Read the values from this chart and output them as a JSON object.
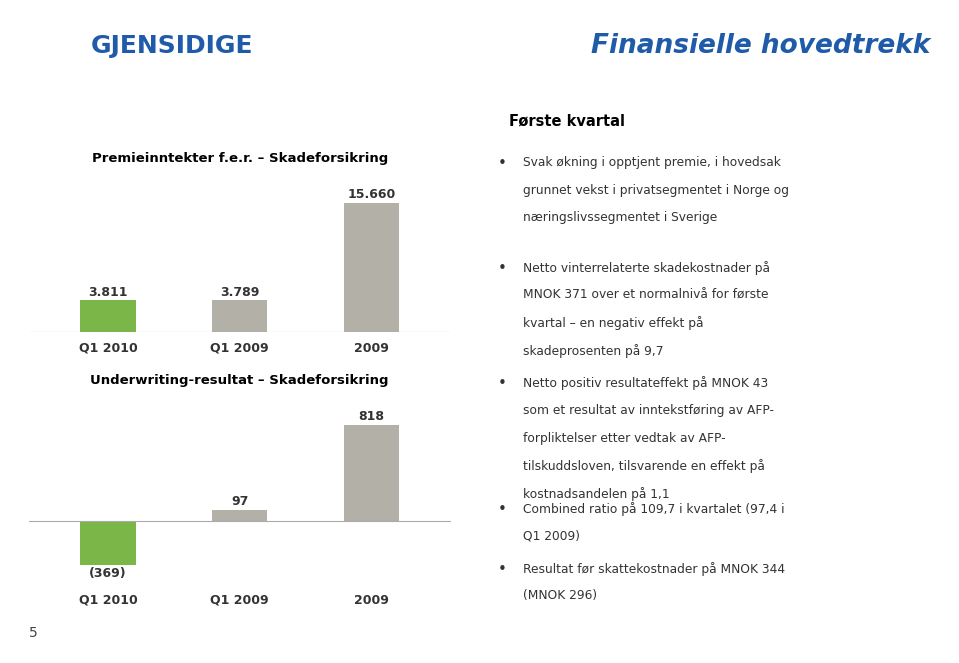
{
  "title_right": "Finansielle hovedtrekk",
  "title_right_color": "#1F5BA8",
  "header_line_color": "#4472C4",
  "background_color": "#ffffff",
  "right_panel_bg": "#e0dede",
  "chart1_title": "Premieinntekter f.e.r. – Skadeforsikring",
  "chart1_categories": [
    "Q1 2010",
    "Q1 2009",
    "2009"
  ],
  "chart1_values": [
    3.811,
    3.789,
    15.66
  ],
  "chart1_colors": [
    "#7ab648",
    "#b3b0a8",
    "#b3b0a8"
  ],
  "chart1_labels": [
    "3.811",
    "3.789",
    "15.660"
  ],
  "chart2_title": "Underwriting-resultat – Skadeforsikring",
  "chart2_categories": [
    "Q1 2010",
    "Q1 2009",
    "2009"
  ],
  "chart2_values": [
    -369,
    97,
    818
  ],
  "chart2_colors": [
    "#7ab648",
    "#b3b0a8",
    "#b3b0a8"
  ],
  "chart2_labels": [
    "(369)",
    "97",
    "818"
  ],
  "left_chart_title": "Premieinntekter f.e.r. – Skadeforsikring",
  "bullet_title": "Første kvartal",
  "bullets": [
    "Svak økning i opptjent premie, i hovedsak\ngrunnet vekst i privatsegmentet i Norge og\nnæringslivssegmentet i Sverige",
    "Netto vinterrelaterte skadekostnader på\nMNOK 371 over et normalnivå for første\nkvartal – en negativ effekt på\nskadeprosenten på 9,7",
    "Netto positiv resultateffekt på MNOK 43\nsom et resultat av inntekstføring av AFP-\nforpliktelser etter vedtak av AFP-\ntilskuddsloven, tilsvarende en effekt på\nkostnadsandelen på 1,1",
    "Combined ratio på 109,7 i kvartalet (97,4 i\nQ1 2009)",
    "Resultat før skattekostnader på MNOK 344\n(MNOK 296)"
  ],
  "footer_text": "5",
  "chart_title_bg": "#dbd9d3",
  "chart_title_color": "#000000",
  "axis_label_color": "#333333",
  "value_label_color": "#333333",
  "logo_box_color": "#1F5BA8",
  "logo_text": "GJENSIDIGE",
  "left_title": "Premieinntekter f.e.r. – Skadeforsikring"
}
